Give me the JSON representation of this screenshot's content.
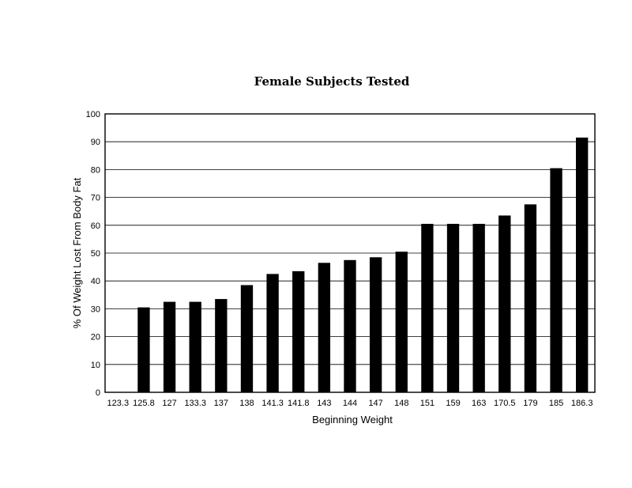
{
  "chart_data": {
    "type": "bar",
    "title": "Female Subjects Tested",
    "xlabel": "Beginning Weight",
    "ylabel": "% Of Weight Lost From Body Fat",
    "ylim": [
      0,
      100
    ],
    "yticks": [
      "0",
      "10",
      "20",
      "30",
      "40",
      "50",
      "60",
      "70",
      "80",
      "90",
      "100"
    ],
    "grid": true,
    "legend": "none",
    "bar_color": "#000000",
    "categories": [
      "123.3",
      "125.8",
      "127",
      "133.3",
      "137",
      "138",
      "141.3",
      "141.8",
      "143",
      "144",
      "147",
      "148",
      "151",
      "159",
      "163",
      "170.5",
      "179",
      "185",
      "186.3"
    ],
    "values": [
      0,
      30.5,
      32.5,
      32.5,
      33.5,
      38.5,
      42.5,
      43.5,
      46.5,
      47.5,
      48.5,
      50.5,
      60.5,
      60.5,
      60.5,
      63.5,
      67.5,
      80.5,
      91.5
    ]
  }
}
